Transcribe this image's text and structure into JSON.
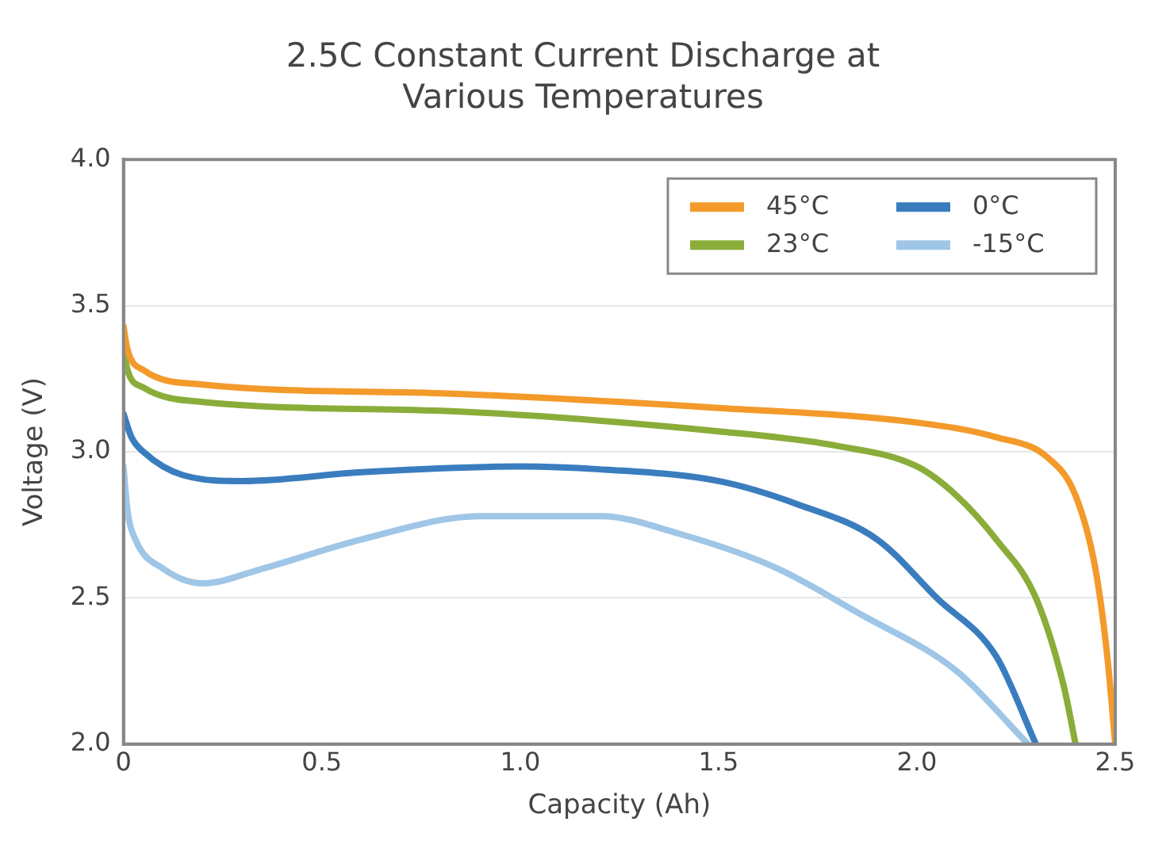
{
  "chart_data": {
    "type": "line",
    "title": "2.5C Constant Current Discharge at Various Temperatures",
    "xlabel": "Capacity (Ah)",
    "ylabel": "Voltage (V)",
    "xlim": [
      0,
      2.5
    ],
    "xticks": [
      0,
      0.5,
      {
        "value": 1,
        "label": "1.0"
      },
      1.5,
      {
        "value": 2,
        "label": "2.0"
      },
      2.5
    ],
    "ylim": [
      2.0,
      4.0
    ],
    "yticks": [
      {
        "value": 2,
        "label": "2.0"
      },
      2.5,
      {
        "value": 3,
        "label": "3.0"
      },
      3.5,
      {
        "value": 4,
        "label": "4.0"
      }
    ],
    "grid": "y",
    "legend": "top right",
    "marker": "none",
    "line_style": "solid",
    "series": [
      {
        "name": "45°C",
        "color": "#f39a2b",
        "x": [
          0,
          0.01,
          0.05,
          0.2,
          0.8,
          1.5,
          2.0,
          2.2,
          2.33,
          2.4,
          2.45,
          2.48,
          2.5
        ],
        "values": [
          3.43,
          3.35,
          3.28,
          3.23,
          3.2,
          3.15,
          3.1,
          3.05,
          2.98,
          2.85,
          2.6,
          2.3,
          2.0
        ]
      },
      {
        "name": "23°C",
        "color": "#8aad3a",
        "x": [
          0,
          0.01,
          0.05,
          0.2,
          0.8,
          1.5,
          1.8,
          2.0,
          2.1,
          2.2,
          2.3,
          2.37,
          2.4
        ],
        "values": [
          3.36,
          3.28,
          3.22,
          3.17,
          3.14,
          3.07,
          3.02,
          2.95,
          2.85,
          2.7,
          2.5,
          2.2,
          2.0
        ]
      },
      {
        "name": "0°C",
        "color": "#3a7dbf",
        "x": [
          0,
          0.02,
          0.05,
          0.15,
          0.3,
          0.6,
          1.0,
          1.2,
          1.5,
          1.7,
          1.9,
          2.05,
          2.2,
          2.3
        ],
        "values": [
          3.13,
          3.05,
          3.0,
          2.92,
          2.9,
          2.93,
          2.95,
          2.94,
          2.9,
          2.82,
          2.7,
          2.5,
          2.3,
          2.0
        ]
      },
      {
        "name": "-15°C",
        "color": "#9fc6e6",
        "x": [
          0,
          0.01,
          0.03,
          0.1,
          0.2,
          0.35,
          0.6,
          0.9,
          1.2,
          1.4,
          1.65,
          1.85,
          2.1,
          2.28
        ],
        "values": [
          2.95,
          2.8,
          2.7,
          2.6,
          2.55,
          2.6,
          2.7,
          2.78,
          2.78,
          2.72,
          2.6,
          2.45,
          2.25,
          2.0
        ]
      }
    ]
  }
}
